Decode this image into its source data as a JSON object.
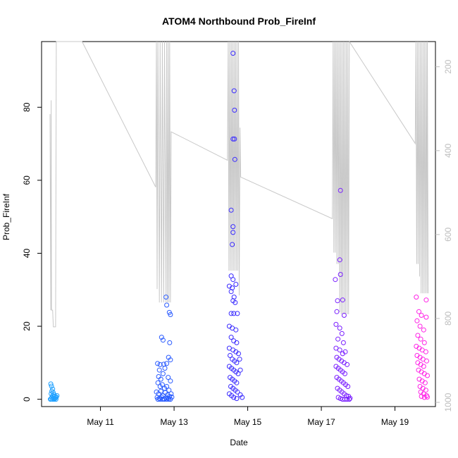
{
  "chart_data": {
    "type": "scatter",
    "title": "ATOM4 Northbound Prob_FireInf",
    "xlabel": "Date",
    "ylabel": "Prob_FireInf",
    "x_ticks": [
      "May 11",
      "May 13",
      "May 15",
      "May 17",
      "May 19"
    ],
    "x_tick_days": [
      11,
      13,
      15,
      17,
      19
    ],
    "xlim_days": [
      9.4,
      20.1
    ],
    "y_ticks": [
      0,
      20,
      40,
      60,
      80
    ],
    "ylim": [
      -2,
      98
    ],
    "y2_ticks": [
      200,
      400,
      600,
      800,
      1000
    ],
    "y2lim": [
      1010,
      140
    ],
    "grid": false,
    "legend": "none",
    "colors": {
      "frame": "#000000",
      "line": "#c8c8c8",
      "right_axis": "#bdbdbd",
      "day_colors": [
        "#1ea0ff",
        "#2b5cff",
        "#3a2bff",
        "#7a1fff",
        "#ff22e6"
      ]
    },
    "series": [
      {
        "color_index": 0,
        "day_range": [
          9.62,
          9.82
        ],
        "points": [
          [
            9.65,
            4.2
          ],
          [
            9.67,
            3.6
          ],
          [
            9.7,
            2.8
          ],
          [
            9.68,
            2.2
          ],
          [
            9.72,
            1.8
          ],
          [
            9.66,
            1.5
          ],
          [
            9.74,
            1.2
          ],
          [
            9.7,
            1.0
          ],
          [
            9.77,
            0.8
          ],
          [
            9.8,
            0.6
          ],
          [
            9.68,
            0.5
          ],
          [
            9.72,
            0.3
          ],
          [
            9.76,
            0.2
          ],
          [
            9.66,
            0.1
          ],
          [
            9.79,
            0.0
          ],
          [
            9.82,
            1.0
          ],
          [
            9.64,
            0.0
          ],
          [
            9.7,
            0.0
          ],
          [
            9.74,
            0.0
          ],
          [
            9.78,
            0.4
          ]
        ]
      },
      {
        "color_index": 1,
        "day_range": [
          12.5,
          12.95
        ],
        "points": [
          [
            12.78,
            28.0
          ],
          [
            12.8,
            25.8
          ],
          [
            12.87,
            23.8
          ],
          [
            12.9,
            23.2
          ],
          [
            12.66,
            17.0
          ],
          [
            12.7,
            16.2
          ],
          [
            12.88,
            15.5
          ],
          [
            12.85,
            11.5
          ],
          [
            12.9,
            10.8
          ],
          [
            12.55,
            9.8
          ],
          [
            12.62,
            9.5
          ],
          [
            12.8,
            9.8
          ],
          [
            12.72,
            9.6
          ],
          [
            12.6,
            8.0
          ],
          [
            12.75,
            8.5
          ],
          [
            12.58,
            6.2
          ],
          [
            12.64,
            5.5
          ],
          [
            12.7,
            7.0
          ],
          [
            12.84,
            6.0
          ],
          [
            12.9,
            5.0
          ],
          [
            12.56,
            4.5
          ],
          [
            12.62,
            3.5
          ],
          [
            12.68,
            4.0
          ],
          [
            12.74,
            3.0
          ],
          [
            12.8,
            3.5
          ],
          [
            12.86,
            2.5
          ],
          [
            12.52,
            2.0
          ],
          [
            12.58,
            1.5
          ],
          [
            12.64,
            2.2
          ],
          [
            12.7,
            1.0
          ],
          [
            12.76,
            1.8
          ],
          [
            12.82,
            1.2
          ],
          [
            12.88,
            0.8
          ],
          [
            12.54,
            0.5
          ],
          [
            12.6,
            0.2
          ],
          [
            12.66,
            0.6
          ],
          [
            12.72,
            0.1
          ],
          [
            12.78,
            0.4
          ],
          [
            12.84,
            0.3
          ],
          [
            12.9,
            0.0
          ],
          [
            12.56,
            0.0
          ],
          [
            12.62,
            0.0
          ],
          [
            12.68,
            0.0
          ],
          [
            12.74,
            0.0
          ],
          [
            12.8,
            0.0
          ],
          [
            12.86,
            0.0
          ],
          [
            12.92,
            1.5
          ],
          [
            12.94,
            0.6
          ]
        ]
      },
      {
        "color_index": 2,
        "day_range": [
          14.45,
          14.95
        ],
        "points": [
          [
            14.6,
            94.8
          ],
          [
            14.63,
            84.5
          ],
          [
            14.64,
            79.2
          ],
          [
            14.6,
            71.3
          ],
          [
            14.64,
            71.3
          ],
          [
            14.65,
            65.7
          ],
          [
            14.55,
            51.8
          ],
          [
            14.6,
            47.3
          ],
          [
            14.6,
            45.7
          ],
          [
            14.58,
            42.4
          ],
          [
            14.55,
            33.8
          ],
          [
            14.6,
            32.8
          ],
          [
            14.5,
            31.0
          ],
          [
            14.58,
            30.5
          ],
          [
            14.68,
            31.5
          ],
          [
            14.55,
            29.5
          ],
          [
            14.63,
            28.0
          ],
          [
            14.6,
            27.0
          ],
          [
            14.66,
            26.5
          ],
          [
            14.55,
            23.5
          ],
          [
            14.62,
            23.5
          ],
          [
            14.72,
            23.5
          ],
          [
            14.5,
            20.0
          ],
          [
            14.58,
            19.5
          ],
          [
            14.68,
            19.0
          ],
          [
            14.55,
            17.0
          ],
          [
            14.62,
            16.0
          ],
          [
            14.7,
            15.5
          ],
          [
            14.5,
            14.0
          ],
          [
            14.6,
            13.5
          ],
          [
            14.68,
            13.0
          ],
          [
            14.75,
            12.5
          ],
          [
            14.52,
            12.0
          ],
          [
            14.58,
            11.0
          ],
          [
            14.64,
            10.5
          ],
          [
            14.7,
            10.0
          ],
          [
            14.78,
            11.0
          ],
          [
            14.5,
            9.0
          ],
          [
            14.56,
            8.5
          ],
          [
            14.62,
            8.0
          ],
          [
            14.68,
            7.5
          ],
          [
            14.74,
            7.0
          ],
          [
            14.8,
            8.0
          ],
          [
            14.52,
            6.0
          ],
          [
            14.58,
            5.5
          ],
          [
            14.64,
            5.0
          ],
          [
            14.7,
            4.5
          ],
          [
            14.54,
            3.5
          ],
          [
            14.6,
            3.0
          ],
          [
            14.66,
            2.5
          ],
          [
            14.72,
            2.0
          ],
          [
            14.5,
            1.5
          ],
          [
            14.56,
            1.0
          ],
          [
            14.8,
            1.2
          ],
          [
            14.85,
            0.5
          ],
          [
            14.62,
            0.5
          ],
          [
            14.7,
            0.2
          ]
        ]
      },
      {
        "color_index": 3,
        "day_range": [
          17.3,
          17.8
        ],
        "points": [
          [
            17.52,
            57.2
          ],
          [
            17.5,
            38.2
          ],
          [
            17.52,
            34.2
          ],
          [
            17.38,
            32.8
          ],
          [
            17.44,
            27.0
          ],
          [
            17.58,
            27.2
          ],
          [
            17.42,
            24.0
          ],
          [
            17.62,
            23.0
          ],
          [
            17.4,
            20.5
          ],
          [
            17.5,
            19.5
          ],
          [
            17.56,
            18.0
          ],
          [
            17.45,
            16.5
          ],
          [
            17.6,
            15.5
          ],
          [
            17.4,
            14.0
          ],
          [
            17.5,
            13.5
          ],
          [
            17.58,
            12.5
          ],
          [
            17.65,
            13.0
          ],
          [
            17.42,
            11.5
          ],
          [
            17.48,
            11.0
          ],
          [
            17.55,
            10.5
          ],
          [
            17.62,
            10.0
          ],
          [
            17.7,
            9.5
          ],
          [
            17.4,
            9.0
          ],
          [
            17.46,
            8.5
          ],
          [
            17.52,
            8.0
          ],
          [
            17.58,
            7.5
          ],
          [
            17.64,
            7.0
          ],
          [
            17.42,
            6.0
          ],
          [
            17.48,
            5.5
          ],
          [
            17.54,
            5.0
          ],
          [
            17.6,
            4.5
          ],
          [
            17.66,
            4.0
          ],
          [
            17.72,
            3.5
          ],
          [
            17.44,
            3.0
          ],
          [
            17.5,
            2.5
          ],
          [
            17.56,
            2.0
          ],
          [
            17.62,
            1.5
          ],
          [
            17.68,
            1.0
          ],
          [
            17.74,
            0.8
          ],
          [
            17.46,
            0.5
          ],
          [
            17.52,
            0.2
          ],
          [
            17.58,
            0.0
          ],
          [
            17.64,
            0.0
          ],
          [
            17.7,
            0.0
          ],
          [
            17.76,
            0.0
          ],
          [
            17.78,
            0.3
          ]
        ]
      },
      {
        "color_index": 4,
        "day_range": [
          19.55,
          19.95
        ],
        "points": [
          [
            19.58,
            28.0
          ],
          [
            19.85,
            27.2
          ],
          [
            19.65,
            24.0
          ],
          [
            19.72,
            23.0
          ],
          [
            19.85,
            22.5
          ],
          [
            19.6,
            21.5
          ],
          [
            19.68,
            20.0
          ],
          [
            19.78,
            19.0
          ],
          [
            19.62,
            17.5
          ],
          [
            19.7,
            16.5
          ],
          [
            19.8,
            15.5
          ],
          [
            19.58,
            14.5
          ],
          [
            19.66,
            14.0
          ],
          [
            19.74,
            13.5
          ],
          [
            19.84,
            13.0
          ],
          [
            19.6,
            12.0
          ],
          [
            19.68,
            11.5
          ],
          [
            19.76,
            11.0
          ],
          [
            19.86,
            10.5
          ],
          [
            19.62,
            10.0
          ],
          [
            19.7,
            9.5
          ],
          [
            19.78,
            9.0
          ],
          [
            19.64,
            8.0
          ],
          [
            19.72,
            7.5
          ],
          [
            19.8,
            7.0
          ],
          [
            19.88,
            6.5
          ],
          [
            19.66,
            5.5
          ],
          [
            19.74,
            5.0
          ],
          [
            19.82,
            4.5
          ],
          [
            19.68,
            3.5
          ],
          [
            19.76,
            3.0
          ],
          [
            19.84,
            2.5
          ],
          [
            19.7,
            2.0
          ],
          [
            19.78,
            1.5
          ],
          [
            19.86,
            1.0
          ],
          [
            19.72,
            0.8
          ],
          [
            19.8,
            0.5
          ],
          [
            19.88,
            0.6
          ]
        ]
      }
    ],
    "line_series": {
      "axis": "right",
      "points": [
        [
          9.63,
          313
        ],
        [
          9.65,
          780
        ],
        [
          9.66,
          280
        ],
        [
          9.67,
          780
        ],
        [
          9.7,
          780
        ],
        [
          9.72,
          820
        ],
        [
          9.78,
          820
        ],
        [
          9.8,
          140
        ],
        [
          10.5,
          140
        ],
        [
          12.5,
          487
        ],
        [
          12.52,
          140
        ],
        [
          12.54,
          730
        ],
        [
          12.56,
          140
        ],
        [
          12.6,
          762
        ],
        [
          12.62,
          140
        ],
        [
          12.66,
          762
        ],
        [
          12.68,
          140
        ],
        [
          12.72,
          762
        ],
        [
          12.74,
          140
        ],
        [
          12.78,
          762
        ],
        [
          12.8,
          140
        ],
        [
          12.82,
          762
        ],
        [
          12.84,
          140
        ],
        [
          12.86,
          762
        ],
        [
          12.88,
          140
        ],
        [
          12.9,
          762
        ],
        [
          12.92,
          355
        ],
        [
          14.45,
          423
        ],
        [
          14.47,
          140
        ],
        [
          14.49,
          686
        ],
        [
          14.51,
          140
        ],
        [
          14.53,
          686
        ],
        [
          14.55,
          140
        ],
        [
          14.57,
          686
        ],
        [
          14.59,
          140
        ],
        [
          14.61,
          686
        ],
        [
          14.63,
          140
        ],
        [
          14.65,
          686
        ],
        [
          14.67,
          140
        ],
        [
          14.69,
          686
        ],
        [
          14.71,
          140
        ],
        [
          14.73,
          686
        ],
        [
          14.75,
          140
        ],
        [
          14.77,
          745
        ],
        [
          14.79,
          345
        ],
        [
          14.81,
          463
        ],
        [
          17.3,
          562
        ],
        [
          17.32,
          140
        ],
        [
          17.34,
          643
        ],
        [
          17.36,
          140
        ],
        [
          17.38,
          643
        ],
        [
          17.4,
          140
        ],
        [
          17.42,
          670
        ],
        [
          17.44,
          140
        ],
        [
          17.46,
          670
        ],
        [
          17.48,
          140
        ],
        [
          17.5,
          785
        ],
        [
          17.52,
          140
        ],
        [
          17.54,
          790
        ],
        [
          17.56,
          140
        ],
        [
          17.58,
          790
        ],
        [
          17.6,
          140
        ],
        [
          17.62,
          790
        ],
        [
          17.64,
          140
        ],
        [
          17.66,
          790
        ],
        [
          17.68,
          140
        ],
        [
          17.7,
          790
        ],
        [
          17.72,
          140
        ],
        [
          17.74,
          790
        ],
        [
          17.76,
          140
        ],
        [
          19.55,
          383
        ],
        [
          19.57,
          140
        ],
        [
          19.59,
          670
        ],
        [
          19.61,
          140
        ],
        [
          19.63,
          670
        ],
        [
          19.65,
          140
        ],
        [
          19.67,
          700
        ],
        [
          19.69,
          140
        ],
        [
          19.71,
          740
        ],
        [
          19.73,
          140
        ],
        [
          19.75,
          740
        ],
        [
          19.77,
          140
        ],
        [
          19.79,
          740
        ],
        [
          19.81,
          140
        ],
        [
          19.83,
          740
        ],
        [
          19.85,
          140
        ],
        [
          19.87,
          740
        ],
        [
          19.88,
          140
        ],
        [
          19.9,
          740
        ]
      ]
    }
  }
}
